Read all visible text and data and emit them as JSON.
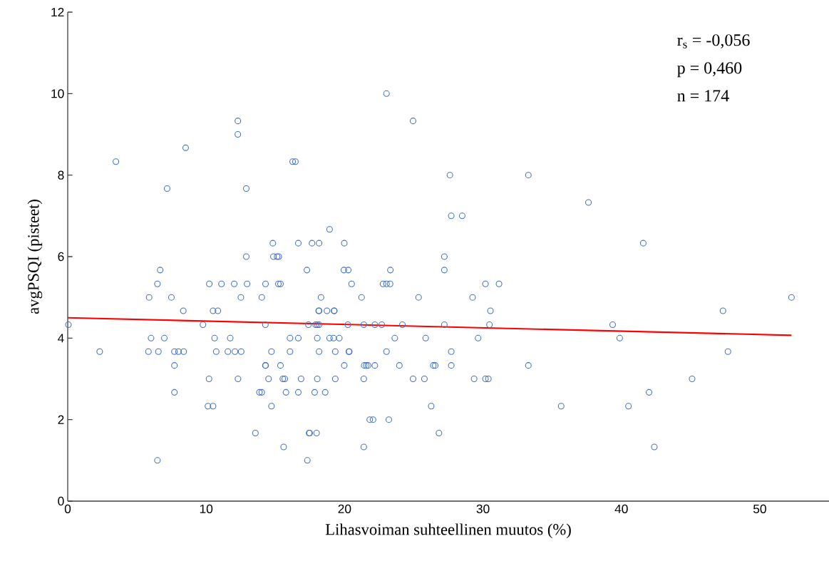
{
  "chart_data": {
    "type": "scatter",
    "xlabel": "Lihasvoiman suhteellinen muutos (%)",
    "ylabel": "avgPSQI (pisteet)",
    "annotations": [
      "r$_{s}$ = -0,056",
      "p = 0,460",
      "n = 174"
    ],
    "xlim": [
      0,
      55
    ],
    "ylim": [
      0,
      12
    ],
    "xticks": [
      0,
      10,
      20,
      30,
      40,
      50
    ],
    "yticks": [
      0,
      2,
      4,
      6,
      8,
      10,
      12
    ],
    "marker": "circle",
    "series": [
      {
        "type": "scatter",
        "color": "#4472c4",
        "x": [
          0.05,
          2.31,
          3.48,
          5.83,
          5.88,
          6.02,
          6.48,
          6.55,
          6.48,
          6.68,
          6.98,
          7.18,
          7.49,
          7.71,
          7.71,
          7.71,
          8.0,
          8.35,
          8.38,
          8.52,
          9.77,
          10.23,
          10.21,
          10.13,
          10.5,
          10.5,
          10.61,
          10.73,
          10.85,
          11.11,
          11.57,
          11.74,
          12.03,
          12.08,
          12.29,
          12.29,
          12.3,
          12.51,
          12.53,
          12.9,
          12.9,
          12.96,
          13.56,
          13.85,
          14.02,
          14.02,
          14.28,
          14.28,
          14.3,
          14.29,
          14.51,
          14.72,
          14.72,
          14.82,
          14.86,
          15.13,
          15.25,
          15.22,
          15.37,
          15.37,
          15.54,
          15.6,
          15.68,
          15.77,
          16.06,
          16.06,
          16.25,
          16.45,
          16.66,
          16.66,
          16.66,
          16.86,
          17.28,
          17.31,
          17.39,
          17.44,
          17.48,
          17.65,
          17.84,
          17.91,
          17.98,
          18.03,
          18.03,
          18.03,
          18.13,
          18.16,
          18.16,
          18.16,
          18.16,
          18.3,
          18.6,
          18.73,
          18.92,
          18.92,
          19.21,
          19.24,
          19.26,
          19.33,
          19.33,
          19.62,
          19.95,
          19.98,
          19.98,
          20.24,
          20.27,
          20.31,
          20.34,
          20.51,
          21.23,
          21.39,
          21.39,
          21.39,
          21.42,
          21.57,
          21.7,
          21.82,
          22.06,
          22.19,
          22.19,
          22.69,
          22.78,
          23.03,
          23.03,
          23.03,
          23.2,
          23.29,
          23.31,
          23.63,
          23.96,
          24.18,
          24.95,
          24.95,
          25.35,
          25.77,
          25.86,
          26.26,
          26.41,
          26.55,
          26.82,
          27.21,
          27.21,
          27.21,
          27.61,
          27.71,
          27.71,
          27.71,
          28.5,
          29.25,
          29.36,
          29.65,
          30.18,
          30.18,
          30.39,
          30.47,
          30.54,
          31.16,
          33.28,
          33.28,
          35.65,
          37.62,
          39.37,
          39.88,
          40.51,
          41.58,
          42.0,
          42.38,
          45.11,
          47.34,
          47.7,
          52.29
        ],
        "values": [
          4.33,
          3.67,
          8.33,
          3.67,
          5,
          4,
          5.33,
          3.67,
          1,
          5.67,
          4,
          7.67,
          5,
          3.67,
          3.33,
          2.67,
          3.67,
          4.67,
          3.67,
          8.67,
          4.33,
          5.33,
          3,
          2.33,
          2.33,
          4.67,
          4,
          3.67,
          4.67,
          5.33,
          3.67,
          4,
          5.33,
          3.67,
          9.33,
          9,
          3,
          5,
          3.67,
          7.67,
          6,
          5.33,
          1.67,
          2.67,
          2.67,
          5,
          4.33,
          3.33,
          3.33,
          5.33,
          3,
          3.67,
          2.33,
          6.33,
          6,
          6,
          6,
          5.33,
          5.33,
          3.33,
          3,
          1.33,
          3,
          2.67,
          4,
          3.67,
          8.33,
          8.33,
          6.33,
          4,
          2.67,
          3,
          5.67,
          1,
          4.33,
          1.67,
          1.67,
          6.33,
          2.67,
          4.33,
          1.67,
          4.33,
          4,
          3,
          4.67,
          4.67,
          4.33,
          3.67,
          6.33,
          5,
          2.67,
          4.67,
          6.67,
          4,
          4,
          4.67,
          4.67,
          3.67,
          3,
          4,
          5.67,
          6.33,
          3.33,
          4.33,
          5.67,
          3.67,
          3.67,
          5.33,
          5,
          4.33,
          3,
          1.33,
          3.33,
          3.33,
          3.33,
          2,
          2,
          4.33,
          3.33,
          4.33,
          5.33,
          10,
          5.33,
          3.67,
          2,
          5.33,
          5.67,
          4,
          3.33,
          4.33,
          9.33,
          3,
          5,
          3,
          4,
          2.33,
          3.33,
          3.33,
          1.67,
          6,
          5.67,
          4.33,
          8,
          7,
          3.67,
          3.33,
          7,
          5,
          3,
          4,
          5.33,
          3,
          3,
          4.33,
          4.67,
          5.33,
          8,
          3.33,
          2.33,
          7.33,
          4.33,
          4,
          2.33,
          6.33,
          2.67,
          1.33,
          3,
          4.67,
          3.67,
          5
        ]
      },
      {
        "type": "line",
        "color": "#ff0000",
        "marker": "none",
        "x": [
          0,
          52.29
        ],
        "values": [
          4.5,
          4.07
        ]
      }
    ]
  }
}
